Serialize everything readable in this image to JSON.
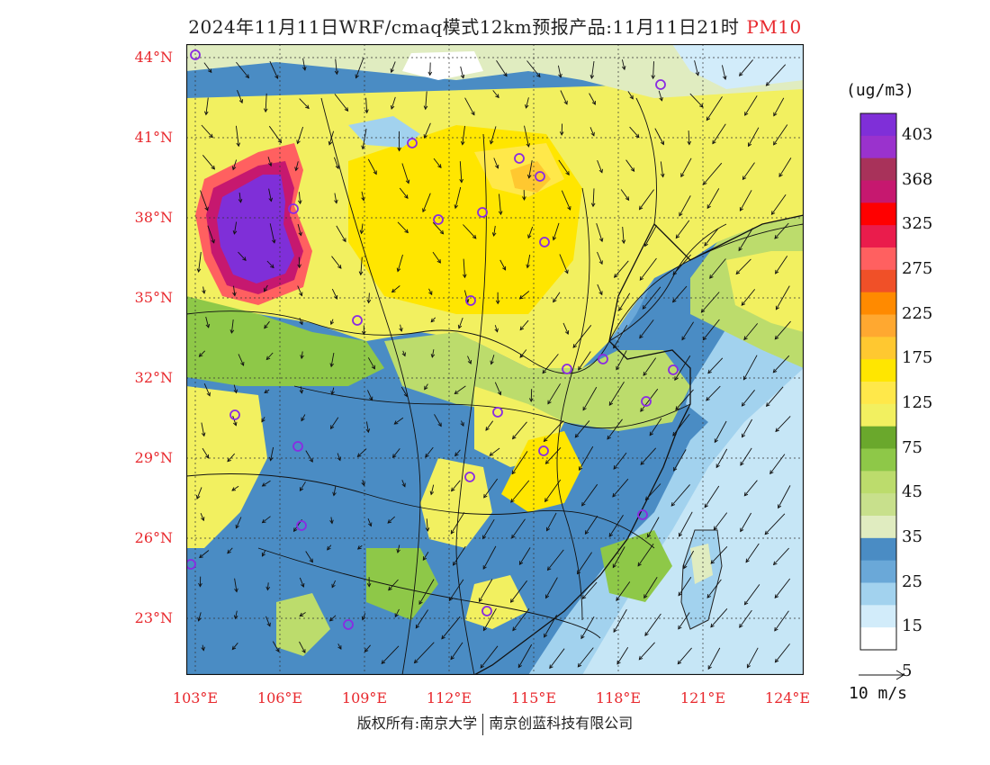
{
  "title": {
    "main": "2024年11月11日WRF/cmaq模式12km预报产品:11月11日21时",
    "pollutant": "PM10"
  },
  "lat_labels": [
    "44°N",
    "41°N",
    "38°N",
    "35°N",
    "32°N",
    "29°N",
    "26°N",
    "23°N"
  ],
  "lon_labels": [
    "103°E",
    "106°E",
    "109°E",
    "112°E",
    "115°E",
    "118°E",
    "121°E",
    "124°E"
  ],
  "colorbar": {
    "unit": "(ug/m3)",
    "labels": [
      "403",
      "368",
      "325",
      "275",
      "225",
      "175",
      "125",
      "75",
      "45",
      "35",
      "25",
      "15",
      "5"
    ],
    "colors": [
      "#7f2fd8",
      "#9a32cd",
      "#a8325a",
      "#c6186f",
      "#ff0000",
      "#ea1c4c",
      "#ff6060",
      "#f05028",
      "#ff8a00",
      "#ffa830",
      "#ffc830",
      "#ffe600",
      "#ffe84a",
      "#f2f060",
      "#6aa82c",
      "#8ec848",
      "#bcdc6c",
      "#c8e08c",
      "#e0ecc0",
      "#4a8cc4",
      "#6aa8d8",
      "#a2d2ee",
      "#d2ecfa",
      "#ffffff"
    ]
  },
  "wind_legend": {
    "label": "10 m/s"
  },
  "copyright": {
    "left": "版权所有:南京大学",
    "right": "南京创蓝科技有限公司"
  },
  "map_colors": {
    "ocean_near": "#6aa8d8",
    "ocean_far": "#a2d2ee",
    "land_low": "#4a8cc4",
    "high_pm": "#7f2fd8"
  }
}
